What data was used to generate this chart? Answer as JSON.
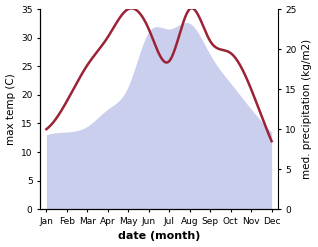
{
  "months": [
    "Jan",
    "Feb",
    "Mar",
    "Apr",
    "May",
    "Jun",
    "Jul",
    "Aug",
    "Sep",
    "Oct",
    "Nov",
    "Dec"
  ],
  "temp": [
    13.0,
    13.5,
    14.5,
    17.5,
    21.5,
    31.0,
    31.5,
    32.5,
    27.0,
    22.0,
    17.5,
    13.5
  ],
  "precip": [
    10.0,
    13.5,
    18.0,
    21.5,
    25.0,
    22.5,
    18.5,
    25.0,
    21.0,
    19.5,
    15.0,
    8.5
  ],
  "temp_fill_color": "#b8bde8",
  "precip_color": "#9b2335",
  "temp_ylim": [
    0,
    35
  ],
  "precip_ylim": [
    0,
    25
  ],
  "xlabel": "date (month)",
  "ylabel_left": "max temp (C)",
  "ylabel_right": "med. precipitation (kg/m2)",
  "label_fontsize": 7.5,
  "tick_fontsize": 6.5,
  "xlabel_fontsize": 8,
  "xlabel_fontweight": "bold",
  "precip_linewidth": 1.8,
  "fill_alpha": 0.6,
  "bg_color": "#ffffff",
  "yticks_left": [
    0,
    5,
    10,
    15,
    20,
    25,
    30,
    35
  ],
  "yticks_right": [
    0,
    5,
    10,
    15,
    20,
    25
  ]
}
